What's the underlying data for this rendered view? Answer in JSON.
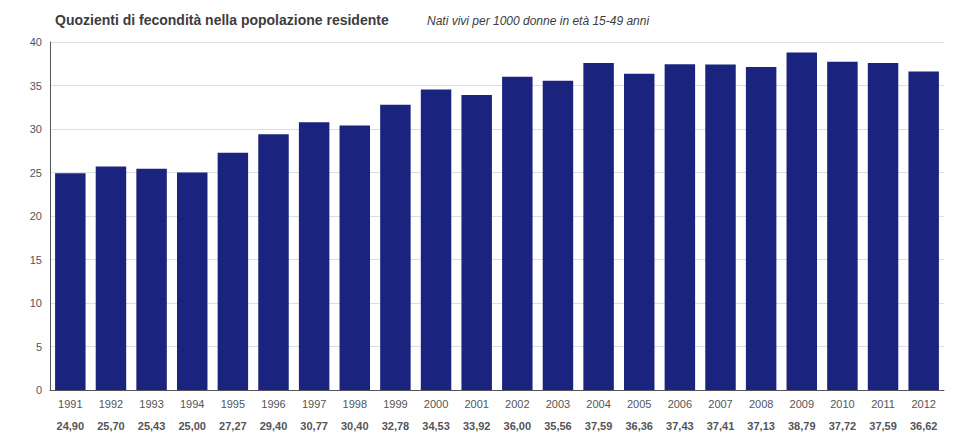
{
  "chart_data": {
    "type": "bar",
    "title": "Quozienti di fecondità nella popolazione residente",
    "subtitle": "Nati vivi per 1000 donne in età 15-49 anni",
    "categories": [
      "1991",
      "1992",
      "1993",
      "1994",
      "1995",
      "1996",
      "1997",
      "1998",
      "1999",
      "2000",
      "2001",
      "2002",
      "2003",
      "2004",
      "2005",
      "2006",
      "2007",
      "2008",
      "2009",
      "2010",
      "2011",
      "2012"
    ],
    "values": [
      24.9,
      25.7,
      25.43,
      25.0,
      27.27,
      29.4,
      30.77,
      30.4,
      32.78,
      34.53,
      33.92,
      36.0,
      35.56,
      37.59,
      36.36,
      37.43,
      37.41,
      37.13,
      38.79,
      37.72,
      37.59,
      36.62
    ],
    "value_labels": [
      "24,90",
      "25,70",
      "25,43",
      "25,00",
      "27,27",
      "29,40",
      "30,77",
      "30,40",
      "32,78",
      "34,53",
      "33,92",
      "36,00",
      "35,56",
      "37,59",
      "36,36",
      "37,43",
      "37,41",
      "37,13",
      "38,79",
      "37,72",
      "37,59",
      "36,62"
    ],
    "color": "#1a237e",
    "ylim": [
      0,
      40
    ],
    "yticks": [
      0,
      5,
      10,
      15,
      20,
      25,
      30,
      35,
      40
    ],
    "grid": true
  }
}
